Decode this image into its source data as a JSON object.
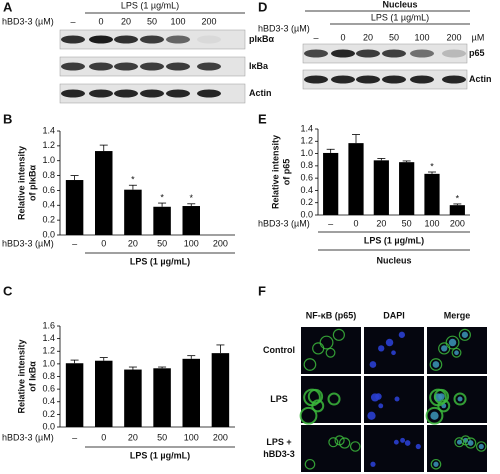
{
  "chart_data": [
    {
      "type": "bar",
      "panel": "B",
      "ylabel": [
        "Relative intensity",
        "of pIκBα"
      ],
      "xprefix": "hBD3-3 (µM)",
      "group": "LPS (1 µg/mL)",
      "categories": [
        "–",
        "0",
        "20",
        "50",
        "100",
        "200"
      ],
      "values": [
        0.74,
        1.13,
        0.61,
        0.38,
        0.39,
        null
      ],
      "errors": [
        0.06,
        0.08,
        0.06,
        0.05,
        0.03,
        null
      ],
      "significance": [
        false,
        false,
        true,
        true,
        true,
        false
      ],
      "significance_label": "*",
      "color": "#000000",
      "ylim": [
        0,
        1.4
      ],
      "yticks": [
        {
          "value": 0,
          "label": "0.0"
        },
        0.2,
        0.4,
        0.6,
        0.8,
        {
          "value": 1,
          "label": "1.0"
        },
        1.2,
        1.4
      ]
    },
    {
      "type": "bar",
      "panel": "C",
      "ylabel": [
        "Relative intensity",
        "of IκBα"
      ],
      "xprefix": "hBD3-3 (µM)",
      "group": "LPS (1 µg/mL)",
      "categories": [
        "–",
        "0",
        "20",
        "50",
        "100",
        "200"
      ],
      "values": [
        1.01,
        1.05,
        0.91,
        0.93,
        1.08,
        1.17
      ],
      "errors": [
        0.05,
        0.05,
        0.04,
        0.02,
        0.05,
        0.13
      ],
      "significance": [
        false,
        false,
        false,
        false,
        false,
        false
      ],
      "significance_label": "*",
      "color": "#000000",
      "ylim": [
        0,
        1.6
      ],
      "yticks": [
        {
          "value": 0,
          "label": "0.0"
        },
        0.2,
        0.4,
        0.6,
        0.8,
        {
          "value": 1,
          "label": "1.0"
        },
        1.2,
        1.4,
        1.6
      ]
    },
    {
      "type": "bar",
      "panel": "E",
      "ylabel": [
        "Relative intensity",
        "of p65"
      ],
      "xprefix": "hBD3-3 (µM)",
      "group": "LPS (1 µg/mL)",
      "footer": "Nucleus",
      "categories": [
        "–",
        "0",
        "20",
        "50",
        "100",
        "200"
      ],
      "values": [
        1.01,
        1.17,
        0.89,
        0.86,
        0.67,
        0.16
      ],
      "errors": [
        0.06,
        0.14,
        0.03,
        0.02,
        0.03,
        0.02
      ],
      "significance": [
        false,
        false,
        false,
        false,
        true,
        true
      ],
      "significance_label": "*",
      "color": "#000000",
      "ylim": [
        0,
        1.4
      ],
      "yticks": [
        {
          "value": 0,
          "label": "0.0"
        },
        0.2,
        0.4,
        0.6,
        0.8,
        {
          "value": 1,
          "label": "1.0"
        },
        1.2,
        1.4
      ]
    }
  ],
  "blots": [
    {
      "panel": "A",
      "group": "LPS (1 µg/mL)",
      "xprefix": "hBD3-3 (µM)",
      "lanes": [
        "–",
        "0",
        "20",
        "50",
        "100",
        "200"
      ],
      "rows": [
        "pIκBα",
        "IκBa",
        "Actin"
      ]
    },
    {
      "panel": "D",
      "top": "Nucleus",
      "group": "LPS (1 µg/mL)",
      "xprefix": "hBD3-3 (µM)",
      "lanes": [
        "–",
        "0",
        "20",
        "50",
        "100",
        "200"
      ],
      "unit": "µM",
      "rows": [
        "p65",
        "Actin"
      ]
    }
  ],
  "microscopy": {
    "panel": "F",
    "columns": [
      "NF-κB (p65)",
      "DAPI",
      "Merge"
    ],
    "rows": [
      [
        "Control"
      ],
      [
        "LPS"
      ],
      [
        "LPS +",
        "hBD3-3"
      ]
    ]
  }
}
